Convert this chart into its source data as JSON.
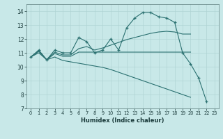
{
  "xlabel": "Humidex (Indice chaleur)",
  "background_color": "#c8e8e8",
  "grid_color": "#b0d4d4",
  "line_color": "#2a7070",
  "xlim": [
    -0.5,
    23.5
  ],
  "ylim": [
    7,
    14.5
  ],
  "yticks": [
    7,
    8,
    9,
    10,
    11,
    12,
    13,
    14
  ],
  "xticks": [
    0,
    1,
    2,
    3,
    4,
    5,
    6,
    7,
    8,
    9,
    10,
    11,
    12,
    13,
    14,
    15,
    16,
    17,
    18,
    19,
    20,
    21,
    22,
    23
  ],
  "series": [
    {
      "x": [
        0,
        1,
        2,
        3,
        4,
        5,
        6,
        7,
        8,
        9,
        10,
        11,
        12,
        13,
        14,
        15,
        16,
        17,
        18,
        19,
        20,
        21,
        22
      ],
      "y": [
        10.7,
        11.2,
        10.5,
        11.2,
        11.0,
        11.0,
        12.1,
        11.8,
        11.0,
        11.2,
        12.0,
        11.2,
        12.8,
        13.5,
        13.9,
        13.9,
        13.6,
        13.5,
        13.2,
        11.0,
        10.2,
        9.2,
        7.5
      ],
      "marker": "+"
    },
    {
      "x": [
        0,
        1,
        2,
        3,
        4,
        5,
        6,
        7,
        8,
        9,
        10,
        11,
        12,
        13,
        14,
        15,
        16,
        17,
        18,
        19,
        20
      ],
      "y": [
        10.7,
        11.15,
        10.5,
        11.05,
        10.85,
        10.85,
        11.3,
        11.45,
        11.2,
        11.35,
        11.55,
        11.75,
        11.95,
        12.1,
        12.25,
        12.4,
        12.5,
        12.55,
        12.5,
        12.35,
        12.35
      ],
      "marker": null
    },
    {
      "x": [
        0,
        1,
        2,
        3,
        4,
        5,
        6,
        7,
        8,
        9,
        10,
        11,
        12,
        13,
        14,
        15,
        16,
        17,
        18,
        19,
        20
      ],
      "y": [
        10.7,
        11.1,
        10.5,
        10.95,
        10.75,
        10.75,
        11.05,
        11.05,
        11.05,
        11.05,
        11.05,
        11.05,
        11.05,
        11.05,
        11.05,
        11.05,
        11.05,
        11.05,
        11.05,
        11.05,
        11.05
      ],
      "marker": null
    },
    {
      "x": [
        0,
        1,
        2,
        3,
        4,
        5,
        6,
        7,
        8,
        9,
        10,
        11,
        12,
        13,
        14,
        15,
        16,
        17,
        18,
        19,
        20
      ],
      "y": [
        10.7,
        11.0,
        10.5,
        10.7,
        10.45,
        10.35,
        10.25,
        10.15,
        10.05,
        9.95,
        9.8,
        9.6,
        9.4,
        9.2,
        9.0,
        8.8,
        8.6,
        8.4,
        8.2,
        8.0,
        7.8
      ],
      "marker": null
    }
  ]
}
